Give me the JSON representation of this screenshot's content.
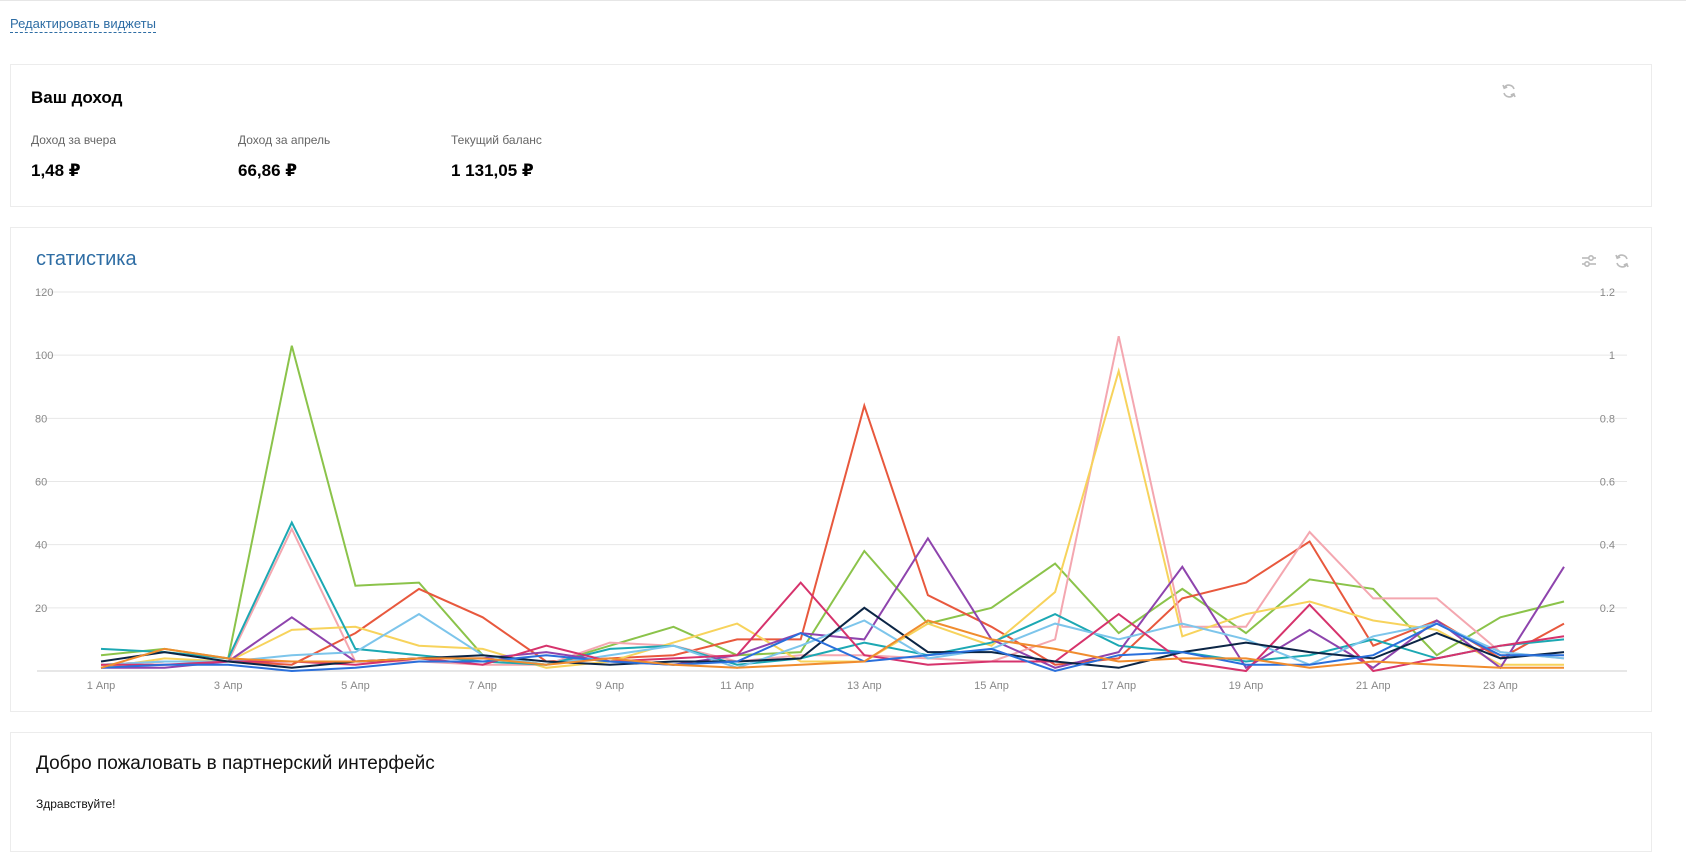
{
  "header": {
    "edit_widgets_label": "Редактировать виджеты"
  },
  "income": {
    "title": "Ваш доход",
    "metrics": [
      {
        "label": "Доход за вчера",
        "value": "1,48 ₽"
      },
      {
        "label": "Доход за апрель",
        "value": "66,86 ₽"
      },
      {
        "label": "Текущий баланс",
        "value": "1 131,05 ₽"
      }
    ],
    "refresh_icon": "refresh-icon"
  },
  "stats": {
    "title": "статистика",
    "settings_icon": "sliders-icon",
    "refresh_icon": "refresh-icon"
  },
  "welcome": {
    "title": "Добро пожаловать в партнерский интерфейс",
    "greeting": "Здравствуйте!"
  },
  "chart_data": {
    "type": "line",
    "x": [
      "1 Апр",
      "2 Апр",
      "3 Апр",
      "4 Апр",
      "5 Апр",
      "6 Апр",
      "7 Апр",
      "8 Апр",
      "9 Апр",
      "10 Апр",
      "11 Апр",
      "12 Апр",
      "13 Апр",
      "14 Апр",
      "15 Апр",
      "16 Апр",
      "17 Апр",
      "18 Апр",
      "19 Апр",
      "20 Апр",
      "21 Апр",
      "22 Апр",
      "23 Апр",
      "24 Апр"
    ],
    "x_tick_labels": [
      "1 Апр",
      "3 Апр",
      "5 Апр",
      "7 Апр",
      "9 Апр",
      "11 Апр",
      "13 Апр",
      "15 Апр",
      "17 Апр",
      "19 Апр",
      "21 Апр",
      "23 Апр"
    ],
    "y_left_ticks": [
      "120",
      "100",
      "80",
      "60",
      "40",
      "20"
    ],
    "y_right_ticks": [
      "1.2",
      "1",
      "0.8",
      "0.6",
      "0.4",
      "0.2"
    ],
    "ylim": [
      0,
      120
    ],
    "grid": true,
    "series": [
      {
        "color": "#8bc34a",
        "values": [
          5,
          7,
          4,
          103,
          27,
          28,
          5,
          2,
          8,
          14,
          5,
          6,
          38,
          15,
          20,
          34,
          12,
          26,
          12,
          29,
          26,
          5,
          17,
          22
        ]
      },
      {
        "color": "#e8583d",
        "values": [
          2,
          3,
          3,
          2,
          12,
          26,
          17,
          3,
          4,
          5,
          10,
          10,
          84,
          24,
          14,
          2,
          4,
          23,
          28,
          41,
          8,
          16,
          4,
          15
        ]
      },
      {
        "color": "#f4a7b0",
        "values": [
          2,
          3,
          3,
          45,
          3,
          3,
          2,
          2,
          9,
          8,
          3,
          5,
          5,
          4,
          3,
          10,
          106,
          14,
          14,
          44,
          23,
          23,
          6,
          4
        ]
      },
      {
        "color": "#f7d35c",
        "values": [
          1,
          4,
          3,
          13,
          14,
          8,
          7,
          1,
          3,
          9,
          15,
          3,
          3,
          15,
          8,
          25,
          95,
          11,
          18,
          22,
          16,
          13,
          2,
          2
        ]
      },
      {
        "color": "#1ca8b3",
        "values": [
          7,
          6,
          4,
          47,
          7,
          5,
          3,
          2,
          7,
          8,
          2,
          4,
          9,
          5,
          9,
          18,
          8,
          6,
          3,
          5,
          10,
          4,
          8,
          10
        ]
      },
      {
        "color": "#8e44ad",
        "values": [
          1,
          1,
          3,
          17,
          3,
          4,
          4,
          6,
          3,
          2,
          5,
          12,
          10,
          42,
          10,
          1,
          6,
          33,
          1,
          13,
          1,
          16,
          1,
          33
        ]
      },
      {
        "color": "#7dc5eb",
        "values": [
          2,
          3,
          3,
          5,
          6,
          18,
          5,
          2,
          5,
          8,
          1,
          8,
          16,
          4,
          7,
          15,
          10,
          15,
          10,
          2,
          11,
          15,
          6,
          4
        ]
      },
      {
        "color": "#d6336c",
        "values": [
          2,
          2,
          3,
          3,
          2,
          4,
          2,
          8,
          3,
          4,
          5,
          28,
          5,
          2,
          3,
          3,
          18,
          3,
          0,
          21,
          0,
          4,
          8,
          11
        ]
      },
      {
        "color": "#0b2545",
        "values": [
          3,
          6,
          3,
          1,
          3,
          4,
          5,
          3,
          2,
          3,
          3,
          4,
          20,
          6,
          6,
          3,
          1,
          6,
          9,
          6,
          4,
          12,
          4,
          6
        ]
      },
      {
        "color": "#2a6fdb",
        "values": [
          1,
          2,
          2,
          0,
          1,
          3,
          3,
          5,
          3,
          2,
          3,
          12,
          3,
          5,
          7,
          0,
          5,
          6,
          2,
          2,
          5,
          15,
          5,
          5
        ]
      },
      {
        "color": "#f08c2e",
        "values": [
          1,
          7,
          4,
          3,
          3,
          4,
          4,
          2,
          4,
          2,
          1,
          2,
          3,
          16,
          10,
          7,
          3,
          4,
          4,
          1,
          3,
          2,
          1,
          1
        ]
      }
    ]
  }
}
